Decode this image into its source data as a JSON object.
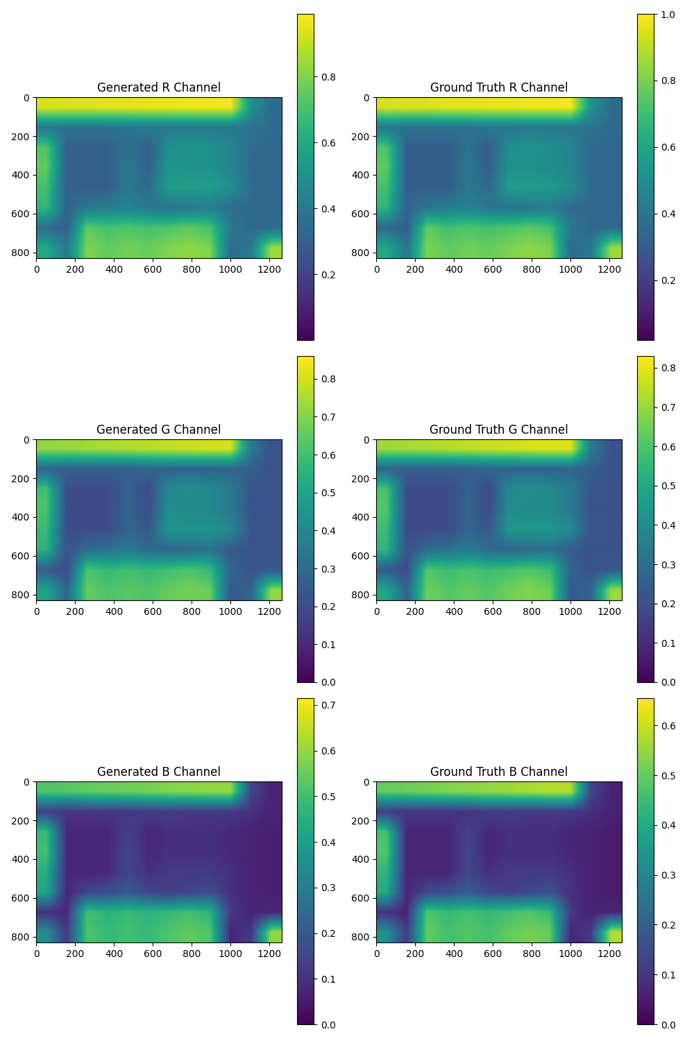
{
  "chart_data": [
    {
      "type": "heatmap",
      "title": "Generated R Channel",
      "color": "viridis",
      "xlim": [
        -0.5,
        1264.5
      ],
      "ylim": [
        829.5,
        -0.5
      ],
      "xticks": [
        0,
        200,
        400,
        600,
        800,
        1000,
        1200
      ],
      "yticks": [
        0,
        200,
        400,
        600,
        800
      ],
      "colorbar_range": [
        0.0,
        0.99
      ],
      "colorbar_ticks": [
        0.2,
        0.4,
        0.6,
        0.8
      ],
      "cells": [
        [
          0.93,
          0.94,
          0.94,
          0.95,
          0.95,
          0.96,
          0.96,
          0.97,
          0.97,
          0.98,
          0.5,
          0.35
        ],
        [
          0.4,
          0.38,
          0.38,
          0.38,
          0.38,
          0.4,
          0.4,
          0.4,
          0.4,
          0.4,
          0.38,
          0.35
        ],
        [
          0.72,
          0.3,
          0.3,
          0.3,
          0.38,
          0.3,
          0.5,
          0.52,
          0.5,
          0.45,
          0.35,
          0.33
        ],
        [
          0.75,
          0.3,
          0.3,
          0.3,
          0.4,
          0.3,
          0.52,
          0.5,
          0.5,
          0.45,
          0.34,
          0.33
        ],
        [
          0.7,
          0.3,
          0.3,
          0.3,
          0.4,
          0.35,
          0.55,
          0.55,
          0.55,
          0.5,
          0.35,
          0.33
        ],
        [
          0.65,
          0.32,
          0.4,
          0.42,
          0.45,
          0.4,
          0.38,
          0.4,
          0.42,
          0.35,
          0.34,
          0.33
        ],
        [
          0.35,
          0.3,
          0.75,
          0.7,
          0.72,
          0.7,
          0.72,
          0.75,
          0.7,
          0.4,
          0.34,
          0.35
        ],
        [
          0.6,
          0.4,
          0.8,
          0.75,
          0.78,
          0.76,
          0.8,
          0.82,
          0.8,
          0.35,
          0.4,
          0.85
        ]
      ]
    },
    {
      "type": "heatmap",
      "title": "Ground Truth R Channel",
      "color": "viridis",
      "xlim": [
        -0.5,
        1264.5
      ],
      "ylim": [
        829.5,
        -0.5
      ],
      "xticks": [
        0,
        200,
        400,
        600,
        800,
        1000,
        1200
      ],
      "yticks": [
        0,
        200,
        400,
        600,
        800
      ],
      "colorbar_range": [
        0.02,
        1.0
      ],
      "colorbar_ticks": [
        0.2,
        0.4,
        0.6,
        0.8,
        1.0
      ],
      "cells": [
        [
          0.94,
          0.95,
          0.95,
          0.96,
          0.96,
          0.97,
          0.97,
          0.98,
          0.98,
          0.99,
          0.52,
          0.36
        ],
        [
          0.41,
          0.39,
          0.39,
          0.39,
          0.39,
          0.41,
          0.41,
          0.41,
          0.41,
          0.41,
          0.39,
          0.36
        ],
        [
          0.73,
          0.31,
          0.31,
          0.31,
          0.39,
          0.31,
          0.5,
          0.53,
          0.5,
          0.46,
          0.36,
          0.34
        ],
        [
          0.76,
          0.31,
          0.31,
          0.31,
          0.41,
          0.31,
          0.52,
          0.51,
          0.5,
          0.46,
          0.35,
          0.34
        ],
        [
          0.71,
          0.31,
          0.31,
          0.31,
          0.41,
          0.36,
          0.56,
          0.56,
          0.55,
          0.5,
          0.36,
          0.34
        ],
        [
          0.66,
          0.33,
          0.41,
          0.43,
          0.46,
          0.41,
          0.39,
          0.41,
          0.43,
          0.36,
          0.35,
          0.34
        ],
        [
          0.36,
          0.31,
          0.76,
          0.71,
          0.73,
          0.71,
          0.73,
          0.76,
          0.71,
          0.41,
          0.35,
          0.36
        ],
        [
          0.61,
          0.41,
          0.81,
          0.76,
          0.79,
          0.77,
          0.81,
          0.83,
          0.81,
          0.36,
          0.41,
          0.86
        ]
      ]
    },
    {
      "type": "heatmap",
      "title": "Generated G Channel",
      "color": "viridis",
      "xlim": [
        -0.5,
        1264.5
      ],
      "ylim": [
        829.5,
        -0.5
      ],
      "xticks": [
        0,
        200,
        400,
        600,
        800,
        1000,
        1200
      ],
      "yticks": [
        0,
        200,
        400,
        600,
        800
      ],
      "colorbar_range": [
        0.0,
        0.86
      ],
      "colorbar_ticks": [
        0.0,
        0.1,
        0.2,
        0.3,
        0.4,
        0.5,
        0.6,
        0.7,
        0.8
      ],
      "cells": [
        [
          0.72,
          0.73,
          0.74,
          0.75,
          0.76,
          0.77,
          0.78,
          0.79,
          0.8,
          0.8,
          0.35,
          0.22
        ],
        [
          0.28,
          0.26,
          0.26,
          0.26,
          0.26,
          0.28,
          0.28,
          0.28,
          0.28,
          0.28,
          0.26,
          0.22
        ],
        [
          0.6,
          0.2,
          0.2,
          0.2,
          0.27,
          0.2,
          0.4,
          0.42,
          0.4,
          0.35,
          0.23,
          0.22
        ],
        [
          0.62,
          0.2,
          0.2,
          0.2,
          0.28,
          0.2,
          0.42,
          0.4,
          0.4,
          0.35,
          0.22,
          0.22
        ],
        [
          0.58,
          0.2,
          0.2,
          0.2,
          0.28,
          0.24,
          0.45,
          0.45,
          0.45,
          0.4,
          0.23,
          0.22
        ],
        [
          0.55,
          0.22,
          0.3,
          0.32,
          0.35,
          0.3,
          0.28,
          0.3,
          0.32,
          0.25,
          0.22,
          0.22
        ],
        [
          0.25,
          0.2,
          0.62,
          0.58,
          0.6,
          0.58,
          0.6,
          0.62,
          0.58,
          0.28,
          0.22,
          0.24
        ],
        [
          0.5,
          0.28,
          0.66,
          0.62,
          0.64,
          0.62,
          0.66,
          0.68,
          0.66,
          0.24,
          0.28,
          0.72
        ]
      ]
    },
    {
      "type": "heatmap",
      "title": "Ground Truth G Channel",
      "color": "viridis",
      "xlim": [
        -0.5,
        1264.5
      ],
      "ylim": [
        829.5,
        -0.5
      ],
      "xticks": [
        0,
        200,
        400,
        600,
        800,
        1000,
        1200
      ],
      "yticks": [
        0,
        200,
        400,
        600,
        800
      ],
      "colorbar_range": [
        0.0,
        0.83
      ],
      "colorbar_ticks": [
        0.0,
        0.1,
        0.2,
        0.3,
        0.4,
        0.5,
        0.6,
        0.7,
        0.8
      ],
      "cells": [
        [
          0.71,
          0.72,
          0.73,
          0.74,
          0.75,
          0.76,
          0.77,
          0.78,
          0.79,
          0.79,
          0.34,
          0.21
        ],
        [
          0.27,
          0.25,
          0.25,
          0.25,
          0.25,
          0.27,
          0.27,
          0.27,
          0.27,
          0.27,
          0.25,
          0.21
        ],
        [
          0.59,
          0.19,
          0.19,
          0.19,
          0.26,
          0.19,
          0.39,
          0.41,
          0.39,
          0.34,
          0.22,
          0.21
        ],
        [
          0.61,
          0.19,
          0.19,
          0.19,
          0.27,
          0.19,
          0.41,
          0.39,
          0.39,
          0.34,
          0.21,
          0.21
        ],
        [
          0.57,
          0.19,
          0.19,
          0.19,
          0.27,
          0.23,
          0.44,
          0.44,
          0.44,
          0.39,
          0.22,
          0.21
        ],
        [
          0.54,
          0.21,
          0.29,
          0.31,
          0.34,
          0.29,
          0.27,
          0.29,
          0.31,
          0.24,
          0.21,
          0.21
        ],
        [
          0.24,
          0.19,
          0.61,
          0.57,
          0.59,
          0.57,
          0.59,
          0.61,
          0.57,
          0.27,
          0.21,
          0.23
        ],
        [
          0.49,
          0.27,
          0.65,
          0.61,
          0.63,
          0.61,
          0.65,
          0.67,
          0.65,
          0.23,
          0.27,
          0.71
        ]
      ]
    },
    {
      "type": "heatmap",
      "title": "Generated B Channel",
      "color": "viridis",
      "xlim": [
        -0.5,
        1264.5
      ],
      "ylim": [
        829.5,
        -0.5
      ],
      "xticks": [
        0,
        200,
        400,
        600,
        800,
        1000,
        1200
      ],
      "yticks": [
        0,
        200,
        400,
        600,
        800
      ],
      "colorbar_range": [
        0.0,
        0.715
      ],
      "colorbar_ticks": [
        0.0,
        0.1,
        0.2,
        0.3,
        0.4,
        0.5,
        0.6,
        0.7
      ],
      "cells": [
        [
          0.52,
          0.53,
          0.54,
          0.55,
          0.56,
          0.57,
          0.58,
          0.59,
          0.6,
          0.6,
          0.15,
          0.07
        ],
        [
          0.13,
          0.11,
          0.11,
          0.11,
          0.11,
          0.13,
          0.13,
          0.12,
          0.12,
          0.12,
          0.1,
          0.07
        ],
        [
          0.48,
          0.08,
          0.08,
          0.08,
          0.14,
          0.08,
          0.1,
          0.1,
          0.1,
          0.08,
          0.07,
          0.06
        ],
        [
          0.5,
          0.08,
          0.08,
          0.08,
          0.15,
          0.08,
          0.1,
          0.1,
          0.1,
          0.08,
          0.07,
          0.06
        ],
        [
          0.45,
          0.08,
          0.08,
          0.08,
          0.15,
          0.1,
          0.12,
          0.12,
          0.12,
          0.1,
          0.07,
          0.06
        ],
        [
          0.42,
          0.08,
          0.15,
          0.17,
          0.2,
          0.15,
          0.13,
          0.15,
          0.17,
          0.1,
          0.07,
          0.06
        ],
        [
          0.1,
          0.08,
          0.5,
          0.46,
          0.48,
          0.46,
          0.48,
          0.5,
          0.46,
          0.12,
          0.07,
          0.08
        ],
        [
          0.35,
          0.12,
          0.52,
          0.48,
          0.5,
          0.48,
          0.52,
          0.54,
          0.52,
          0.08,
          0.12,
          0.6
        ]
      ]
    },
    {
      "type": "heatmap",
      "title": "Ground Truth B Channel",
      "color": "viridis",
      "xlim": [
        -0.5,
        1264.5
      ],
      "ylim": [
        829.5,
        -0.5
      ],
      "xticks": [
        0,
        200,
        400,
        600,
        800,
        1000,
        1200
      ],
      "yticks": [
        0,
        200,
        400,
        600,
        800
      ],
      "colorbar_range": [
        0.0,
        0.655
      ],
      "colorbar_ticks": [
        0.0,
        0.1,
        0.2,
        0.3,
        0.4,
        0.5,
        0.6
      ],
      "cells": [
        [
          0.5,
          0.51,
          0.52,
          0.53,
          0.54,
          0.55,
          0.56,
          0.57,
          0.58,
          0.58,
          0.14,
          0.06
        ],
        [
          0.12,
          0.1,
          0.1,
          0.1,
          0.1,
          0.12,
          0.12,
          0.11,
          0.11,
          0.11,
          0.09,
          0.06
        ],
        [
          0.46,
          0.07,
          0.07,
          0.07,
          0.13,
          0.07,
          0.09,
          0.09,
          0.09,
          0.07,
          0.06,
          0.05
        ],
        [
          0.48,
          0.07,
          0.07,
          0.07,
          0.14,
          0.07,
          0.09,
          0.09,
          0.09,
          0.07,
          0.06,
          0.05
        ],
        [
          0.43,
          0.07,
          0.07,
          0.07,
          0.14,
          0.09,
          0.11,
          0.11,
          0.11,
          0.09,
          0.06,
          0.05
        ],
        [
          0.4,
          0.07,
          0.14,
          0.16,
          0.19,
          0.14,
          0.12,
          0.14,
          0.16,
          0.09,
          0.06,
          0.05
        ],
        [
          0.09,
          0.07,
          0.48,
          0.44,
          0.46,
          0.44,
          0.46,
          0.48,
          0.44,
          0.11,
          0.06,
          0.07
        ],
        [
          0.33,
          0.11,
          0.5,
          0.46,
          0.48,
          0.46,
          0.5,
          0.52,
          0.5,
          0.07,
          0.11,
          0.58
        ]
      ]
    }
  ]
}
